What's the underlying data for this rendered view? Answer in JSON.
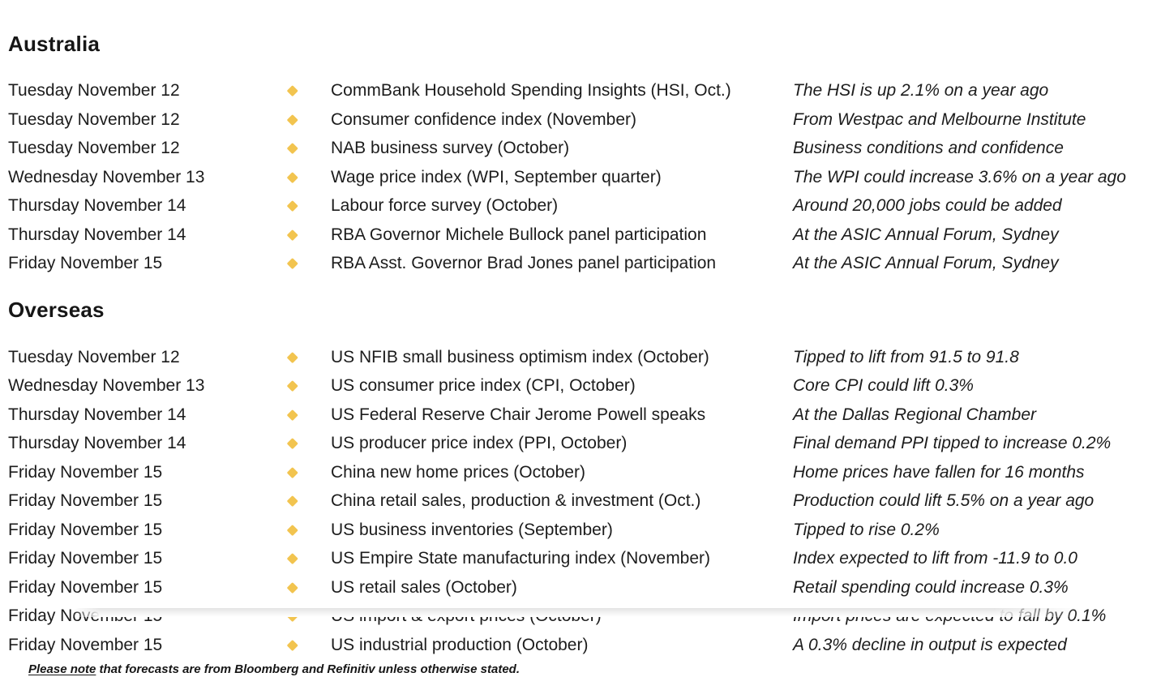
{
  "accent": {
    "bullet_color": "#F2C44F"
  },
  "sections": [
    {
      "title": "Australia",
      "rows": [
        {
          "date": "Tuesday November 12",
          "event": "CommBank Household Spending Insights (HSI, Oct.)",
          "comment": "The HSI is up 2.1% on a year ago"
        },
        {
          "date": "Tuesday November 12",
          "event": "Consumer confidence index (November)",
          "comment": "From Westpac and Melbourne Institute"
        },
        {
          "date": "Tuesday November 12",
          "event": "NAB business survey (October)",
          "comment": "Business conditions and confidence"
        },
        {
          "date": "Wednesday November 13",
          "event": "Wage price index (WPI, September quarter)",
          "comment": "The WPI could increase 3.6% on a year ago"
        },
        {
          "date": "Thursday November 14",
          "event": "Labour force survey (October)",
          "comment": "Around 20,000 jobs could be added"
        },
        {
          "date": "Thursday November 14",
          "event": "RBA Governor Michele Bullock panel participation",
          "comment": "At the ASIC Annual Forum, Sydney"
        },
        {
          "date": "Friday November 15",
          "event": "RBA Asst. Governor Brad Jones panel participation",
          "comment": "At the ASIC Annual Forum, Sydney"
        }
      ]
    },
    {
      "title": "Overseas",
      "rows": [
        {
          "date": "Tuesday November 12",
          "event": "US NFIB small business optimism index (October)",
          "comment": "Tipped to lift from 91.5 to 91.8"
        },
        {
          "date": "Wednesday November 13",
          "event": "US consumer price index (CPI, October)",
          "comment": "Core CPI could lift 0.3%"
        },
        {
          "date": "Thursday November 14",
          "event": "US Federal Reserve Chair Jerome Powell speaks",
          "comment": "At the Dallas Regional Chamber"
        },
        {
          "date": "Thursday November 14",
          "event": "US producer price index (PPI, October)",
          "comment": "Final demand PPI tipped to increase 0.2%"
        },
        {
          "date": "Friday November 15",
          "event": "China new home prices (October)",
          "comment": "Home prices have fallen for 16 months"
        },
        {
          "date": "Friday November 15",
          "event": "China retail sales, production & investment (Oct.)",
          "comment": "Production could lift 5.5% on a year ago"
        },
        {
          "date": "Friday November 15",
          "event": "US business inventories (September)",
          "comment": "Tipped to rise 0.2%"
        },
        {
          "date": "Friday November 15",
          "event": "US Empire State manufacturing index (November)",
          "comment": "Index expected to lift from -11.9 to 0.0"
        },
        {
          "date": "Friday November 15",
          "event": "US retail sales (October)",
          "comment": "Retail spending could increase 0.3%"
        },
        {
          "date": "Friday November 15",
          "event": "US import & export prices (October)",
          "comment": "Import prices are expected to fall by 0.1%"
        },
        {
          "date": "Friday November 15",
          "event": "US industrial production (October)",
          "comment": "A 0.3% decline in output is expected"
        }
      ]
    }
  ],
  "footer": {
    "lead": "Please note",
    "rest": " that forecasts are from Bloomberg and Refinitiv unless otherwise stated."
  }
}
